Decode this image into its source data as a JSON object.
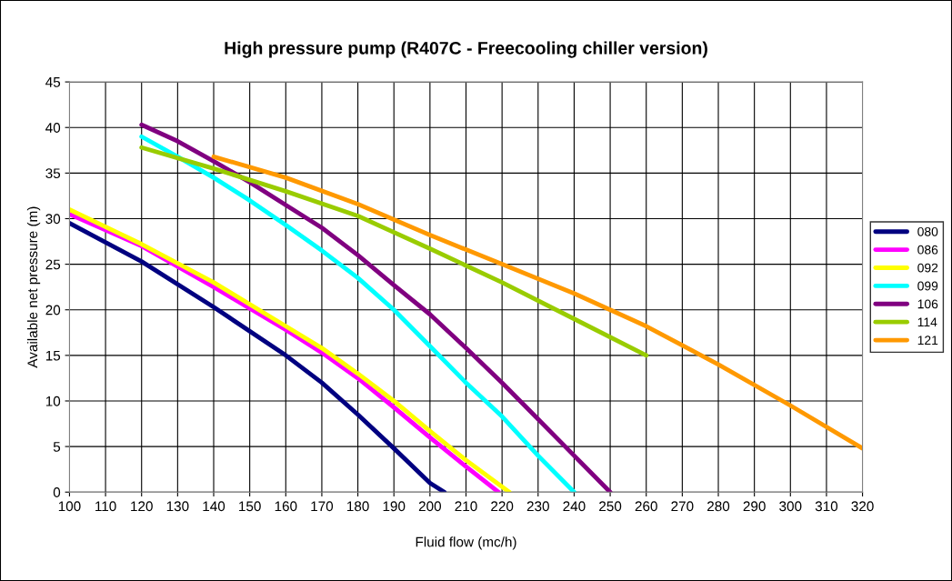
{
  "chart_data": {
    "type": "line",
    "title": "High pressure pump (R407C - Freecooling chiller version)",
    "xlabel": "Fluid flow (mc/h)",
    "ylabel": "Available net pressure (m)",
    "xlim": [
      100,
      320
    ],
    "xticks": [
      100,
      110,
      120,
      130,
      140,
      150,
      160,
      170,
      180,
      190,
      200,
      210,
      220,
      230,
      240,
      250,
      260,
      270,
      280,
      290,
      300,
      310,
      320
    ],
    "ylim": [
      0,
      45
    ],
    "yticks": [
      0,
      5,
      10,
      15,
      20,
      25,
      30,
      35,
      40,
      45
    ],
    "grid": true,
    "legend": "right",
    "marker": "none",
    "line_style": "solid",
    "series": [
      {
        "name": "080",
        "color": "#000080",
        "x": [
          100,
          120,
          140,
          160,
          170,
          180,
          190,
          200,
          204
        ],
        "values": [
          29.5,
          25.3,
          20.3,
          15,
          12,
          8.5,
          4.8,
          1,
          0
        ]
      },
      {
        "name": "086",
        "color": "#ff00ff",
        "x": [
          100,
          120,
          140,
          160,
          170,
          180,
          190,
          200,
          210,
          219
        ],
        "values": [
          30.5,
          27,
          22.5,
          17.8,
          15.3,
          12.5,
          9.3,
          6,
          2.8,
          0
        ]
      },
      {
        "name": "092",
        "color": "#ffff00",
        "x": [
          100,
          120,
          140,
          160,
          170,
          180,
          190,
          200,
          210,
          222
        ],
        "values": [
          31,
          27.2,
          23,
          18.2,
          15.8,
          13,
          10,
          6.7,
          3.5,
          0
        ]
      },
      {
        "name": "099",
        "color": "#00ffff",
        "x": [
          120,
          130,
          140,
          150,
          160,
          170,
          180,
          190,
          200,
          210,
          220,
          230,
          240
        ],
        "values": [
          39,
          36.8,
          34.5,
          32,
          29.3,
          26.5,
          23.5,
          20,
          16,
          12,
          8.3,
          4,
          0
        ]
      },
      {
        "name": "106",
        "color": "#800080",
        "x": [
          120,
          130,
          140,
          150,
          160,
          170,
          180,
          190,
          200,
          210,
          220,
          230,
          240,
          250
        ],
        "values": [
          40.3,
          38.5,
          36.3,
          34,
          31.5,
          29,
          26,
          22.7,
          19.5,
          15.8,
          12,
          8,
          4,
          0
        ]
      },
      {
        "name": "114",
        "color": "#99cc00",
        "x": [
          120,
          140,
          160,
          180,
          200,
          220,
          240,
          260
        ],
        "values": [
          37.8,
          35.5,
          33,
          30.3,
          26.7,
          23,
          19,
          15
        ]
      },
      {
        "name": "121",
        "color": "#ff9900",
        "x": [
          140,
          160,
          180,
          200,
          220,
          240,
          260,
          280,
          300,
          320
        ],
        "values": [
          36.8,
          34.5,
          31.6,
          28.2,
          25,
          21.8,
          18.2,
          14,
          9.5,
          4.8
        ]
      }
    ]
  }
}
